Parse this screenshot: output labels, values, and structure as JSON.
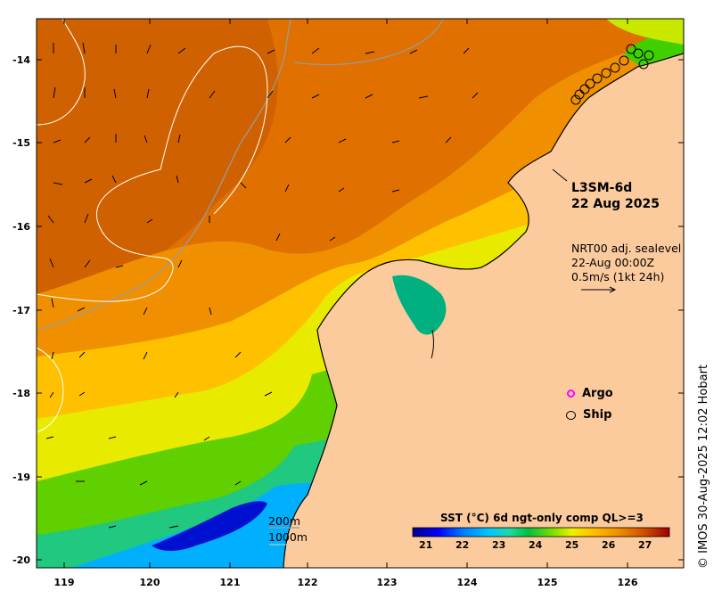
{
  "product": {
    "name": "L3SM-6d",
    "date": "22 Aug 2025"
  },
  "currents": {
    "source": "NRT00 adj. sealevel",
    "time": "22-Aug 00:00Z",
    "scale": "0.5m/s (1kt 24h)"
  },
  "legend": {
    "argo": "Argo",
    "ship": "Ship",
    "argo_color": "#ff00ff",
    "ship_color": "#000000"
  },
  "isobaths": {
    "shallow": "200m",
    "deep": "1000m"
  },
  "colorbar": {
    "title": "SST (°C) 6d ngt-only comp QL>=3",
    "ticks": [
      "21",
      "22",
      "23",
      "24",
      "25",
      "26",
      "27"
    ],
    "colors": [
      "#00008b",
      "#0000ff",
      "#0080ff",
      "#00c8ff",
      "#20d8a0",
      "#00c040",
      "#80e000",
      "#f0f000",
      "#ffc000",
      "#f09000",
      "#e07000",
      "#d05000",
      "#c03000",
      "#a00000"
    ]
  },
  "axes": {
    "lat_ticks": [
      "-14",
      "-15",
      "-16",
      "-17",
      "-18",
      "-19",
      "-20"
    ],
    "lon_ticks": [
      "119",
      "120",
      "121",
      "122",
      "123",
      "124",
      "125",
      "126"
    ]
  },
  "credit": "© IMOS 30-Aug-2025 12:02 Hobart",
  "colors": {
    "land": "#fccb9d",
    "frame": "#000000"
  }
}
